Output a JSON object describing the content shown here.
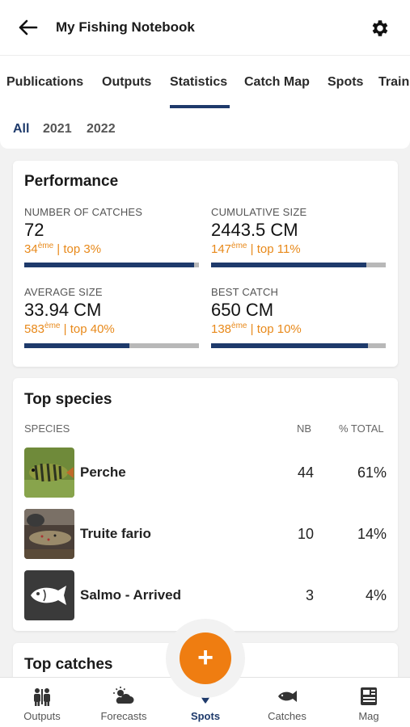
{
  "header": {
    "title": "My Fishing Notebook",
    "back_icon": "arrow-left-icon",
    "settings_icon": "gear-icon"
  },
  "tabs": [
    {
      "label": "Publications"
    },
    {
      "label": "Outputs"
    },
    {
      "label": "Statistics"
    },
    {
      "label": "Catch Map"
    },
    {
      "label": "Spots"
    },
    {
      "label": "Train"
    }
  ],
  "active_tab": "Statistics",
  "years": [
    {
      "label": "All"
    },
    {
      "label": "2021"
    },
    {
      "label": "2022"
    }
  ],
  "performance": {
    "title": "Performance",
    "stats": [
      {
        "label": "NUMBER OF CATCHES",
        "value": "72",
        "rank": "34",
        "rank_suffix": "ème",
        "top": " | top 3%",
        "progress": 0.97
      },
      {
        "label": "CUMULATIVE SIZE",
        "value": "2443.5 CM",
        "rank": "147",
        "rank_suffix": "ème",
        "top": " | top 11%",
        "progress": 0.89
      },
      {
        "label": "AVERAGE SIZE",
        "value": "33.94 CM",
        "rank": "583",
        "rank_suffix": "ème",
        "top": " | top 40%",
        "progress": 0.6
      },
      {
        "label": "BEST CATCH",
        "value": "650 CM",
        "rank": "138",
        "rank_suffix": "ème",
        "top": " | top 10%",
        "progress": 0.9
      }
    ]
  },
  "top_species": {
    "title": "Top species",
    "col_species": "SPECIES",
    "col_nb": "NB",
    "col_total": "% TOTAL",
    "rows": [
      {
        "name": "Perche",
        "nb": "44",
        "pct": "61%"
      },
      {
        "name": "Truite fario",
        "nb": "10",
        "pct": "14%"
      },
      {
        "name": "Salmo - Arrived",
        "nb": "3",
        "pct": "4%"
      }
    ]
  },
  "top_catches": {
    "title": "Top catches"
  },
  "fab": {
    "label": "+"
  },
  "bottom_nav": [
    {
      "label": "Outputs",
      "icon": "people-icon"
    },
    {
      "label": "Forecasts",
      "icon": "weather-icon"
    },
    {
      "label": "Spots",
      "icon": "map-pin-icon"
    },
    {
      "label": "Catches",
      "icon": "fish-icon"
    },
    {
      "label": "Mag",
      "icon": "newspaper-icon"
    }
  ],
  "active_nav": "Spots",
  "colors": {
    "accent": "#1e3a6b",
    "orange": "#ef7d11",
    "rank": "#e8891a"
  }
}
